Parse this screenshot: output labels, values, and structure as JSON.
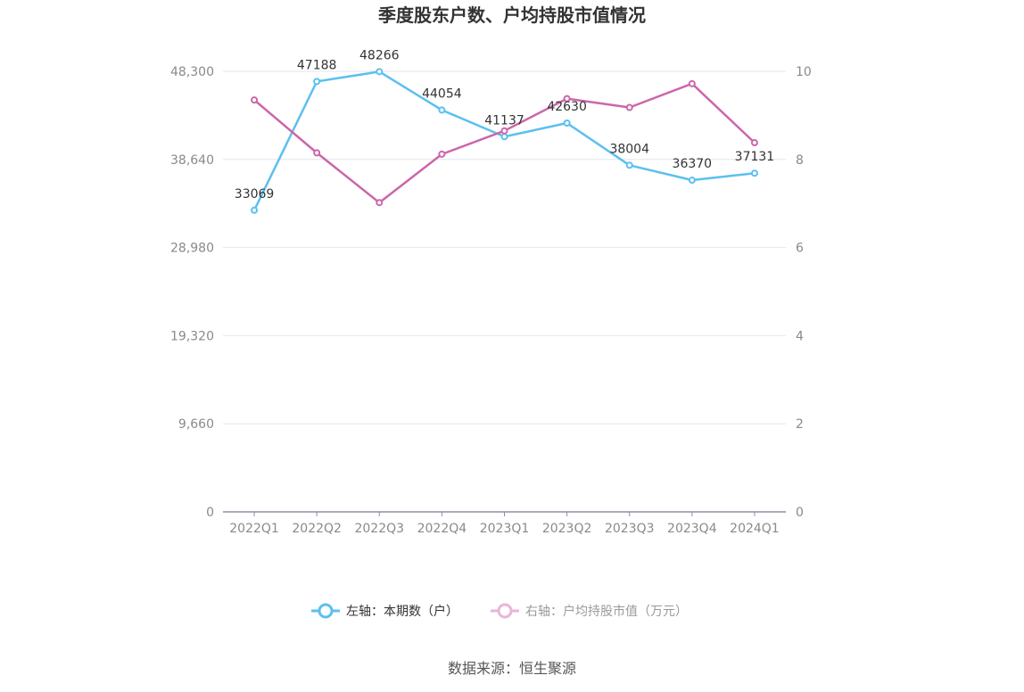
{
  "chart_data": {
    "type": "line",
    "title": "季度股东户数、户均持股市值情况",
    "categories": [
      "2022Q1",
      "2022Q2",
      "2022Q3",
      "2022Q4",
      "2023Q1",
      "2023Q2",
      "2023Q3",
      "2023Q4",
      "2024Q1"
    ],
    "left_axis": {
      "ylim": [
        0,
        48300
      ],
      "ticks": [
        0,
        9660,
        19320,
        28980,
        38640,
        48300
      ],
      "tick_labels": [
        "0",
        "9,660",
        "19,320",
        "28,980",
        "38,640",
        "48,300"
      ]
    },
    "right_axis": {
      "ylim": [
        0,
        10
      ],
      "ticks": [
        0,
        2,
        4,
        6,
        8,
        10
      ],
      "tick_labels": [
        "0",
        "2",
        "4",
        "6",
        "8",
        "10"
      ]
    },
    "series": [
      {
        "name": "左轴：本期数（户）",
        "axis": "left",
        "color": "#5bc0f0",
        "values": [
          33069,
          47188,
          48266,
          44054,
          41137,
          42630,
          38004,
          36370,
          37131
        ],
        "labels": [
          "33069",
          "47188",
          "48266",
          "44054",
          "41137",
          "42630",
          "38004",
          "36370",
          "37131"
        ]
      },
      {
        "name": "右轴：户均持股市值（万元）",
        "axis": "right",
        "color": "#cc66aa",
        "values": [
          9.35,
          8.15,
          7.02,
          8.12,
          8.65,
          9.38,
          9.18,
          9.72,
          8.38
        ]
      }
    ],
    "grid": true,
    "legend": "bottom-center"
  },
  "legend": {
    "left_label": "左轴：本期数（户）",
    "right_label": "右轴：户均持股市值（万元）"
  },
  "footer": {
    "source": "数据来源：恒生聚源"
  }
}
